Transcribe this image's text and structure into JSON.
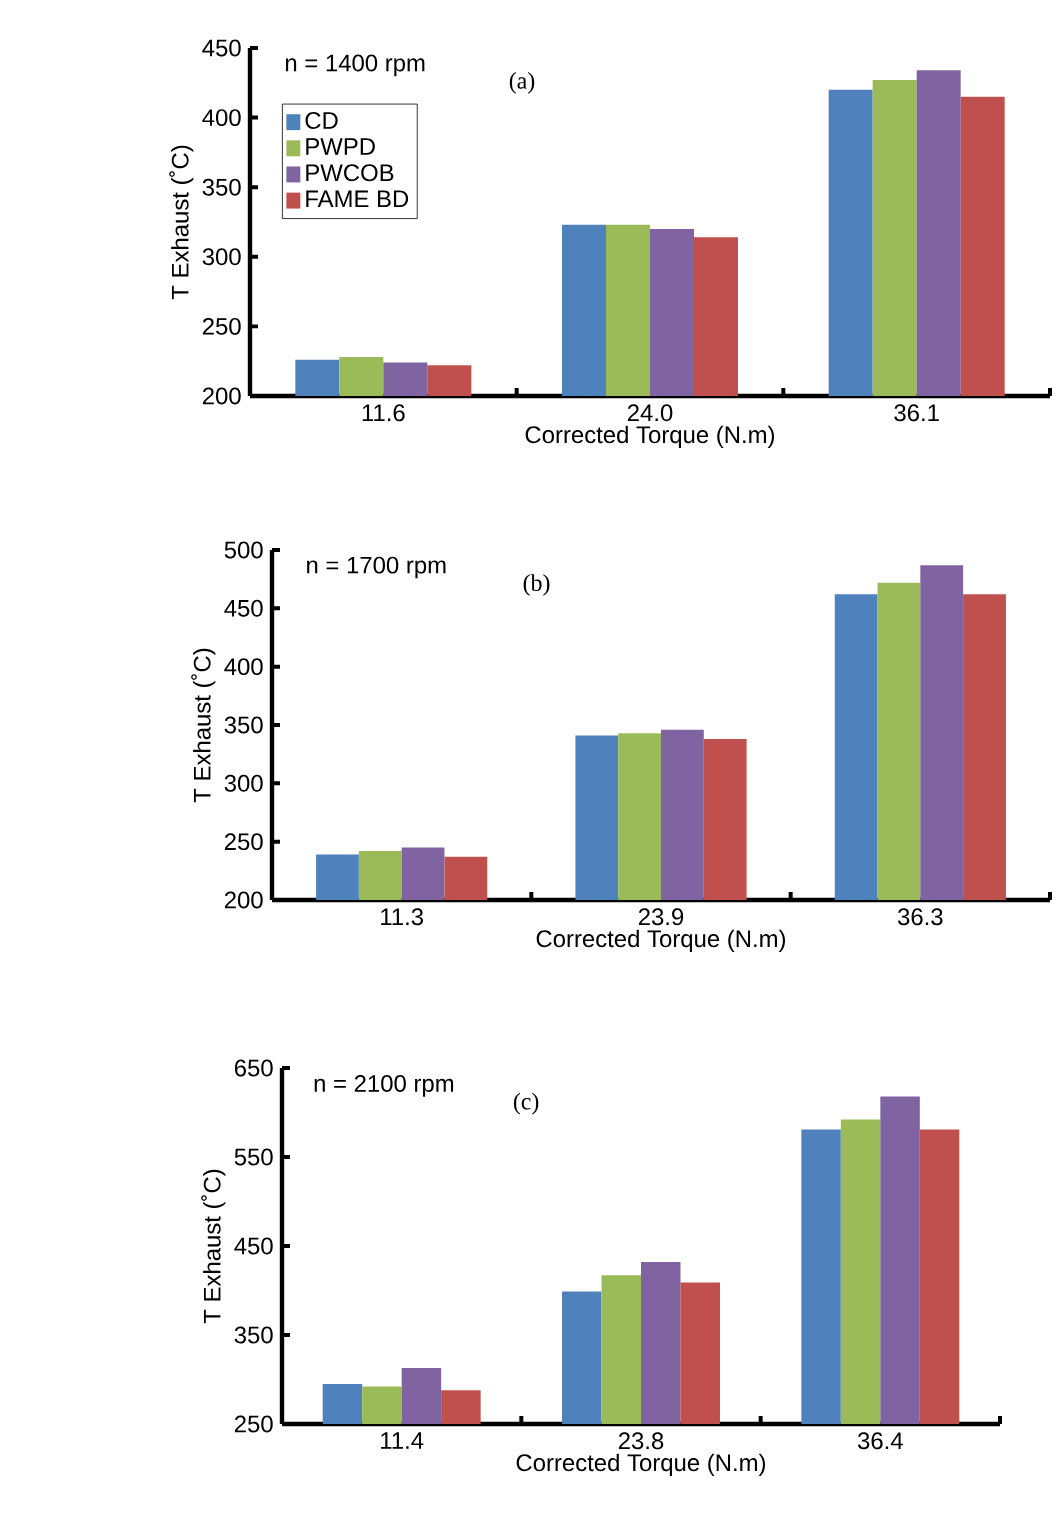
{
  "chart_data": [
    {
      "type": "bar",
      "categories": [
        "11.6",
        "24.0",
        "36.1"
      ],
      "xlabel": "Corrected Torque (N.m)",
      "ylabel": "T Exhaust (˚C)",
      "ylim": [
        200,
        450
      ],
      "yticks": [
        200,
        250,
        300,
        350,
        400,
        450
      ],
      "legend": "top left",
      "annotations": [
        "n = 1400 rpm",
        "(a)"
      ],
      "series": [
        {
          "name": "CD",
          "color": "#4f81bd",
          "values": [
            226,
            323,
            420
          ]
        },
        {
          "name": "PWPD",
          "color": "#9bbb59",
          "values": [
            228,
            323,
            427
          ]
        },
        {
          "name": "PWCOB",
          "color": "#8064a2",
          "values": [
            224,
            320,
            434
          ]
        },
        {
          "name": "FAME BD",
          "color": "#c0504d",
          "values": [
            222,
            314,
            415
          ]
        }
      ]
    },
    {
      "type": "bar",
      "categories": [
        "11.3",
        "23.9",
        "36.3"
      ],
      "xlabel": "Corrected Torque (N.m)",
      "ylabel": "T Exhaust (˚C)",
      "ylim": [
        200,
        500
      ],
      "yticks": [
        200,
        250,
        300,
        350,
        400,
        450,
        500
      ],
      "annotations": [
        "n = 1700 rpm",
        "(b)"
      ],
      "series": [
        {
          "color": "#4f81bd",
          "values": [
            239,
            341,
            462
          ]
        },
        {
          "color": "#9bbb59",
          "values": [
            242,
            343,
            472
          ]
        },
        {
          "color": "#8064a2",
          "values": [
            245,
            346,
            487
          ]
        },
        {
          "color": "#c0504d",
          "values": [
            237,
            338,
            462
          ]
        }
      ]
    },
    {
      "type": "bar",
      "categories": [
        "11.4",
        "23.8",
        "36.4"
      ],
      "xlabel": "Corrected Torque (N.m)",
      "ylabel": "T Exhaust (˚C)",
      "ylim": [
        250,
        650
      ],
      "yticks": [
        250,
        350,
        450,
        550,
        650
      ],
      "annotations": [
        "n = 2100 rpm",
        "(c)"
      ],
      "series": [
        {
          "color": "#4f81bd",
          "values": [
            295,
            399,
            581
          ]
        },
        {
          "color": "#9bbb59",
          "values": [
            292,
            417,
            592
          ]
        },
        {
          "color": "#8064a2",
          "values": [
            313,
            432,
            618
          ]
        },
        {
          "color": "#c0504d",
          "values": [
            288,
            409,
            581
          ]
        }
      ]
    }
  ]
}
